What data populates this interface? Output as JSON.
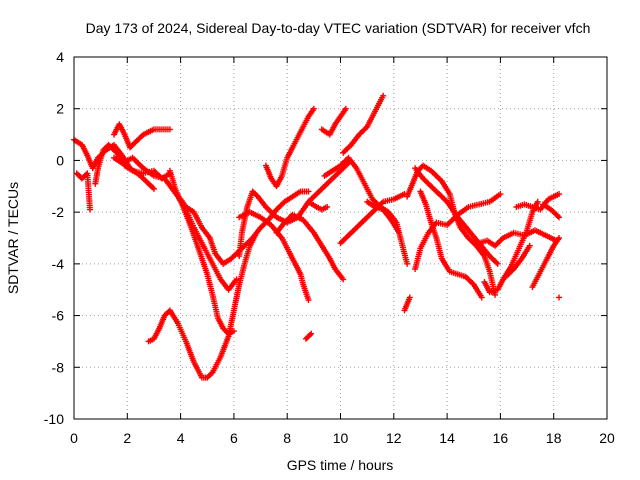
{
  "chart_data": {
    "type": "scatter",
    "title": "Day 173 of 2024, Sidereal Day-to-day VTEC variation (SDTVAR) for receiver vfch",
    "xlabel": "GPS time / hours",
    "ylabel": "SDTVAR / TECUs",
    "xlim": [
      0,
      20
    ],
    "ylim": [
      -10,
      4
    ],
    "xticks": [
      "0",
      "2",
      "4",
      "6",
      "8",
      "10",
      "12",
      "14",
      "16",
      "18",
      "20"
    ],
    "yticks": [
      "4",
      "2",
      "0",
      "-2",
      "-4",
      "-6",
      "-8",
      "-10"
    ],
    "grid": true,
    "marker": "+",
    "color": "#ff0000",
    "series": [
      {
        "name": "trace-1",
        "points": [
          [
            0.0,
            0.8
          ],
          [
            0.3,
            0.6
          ],
          [
            0.5,
            0.2
          ],
          [
            0.7,
            -0.3
          ],
          [
            0.9,
            0.1
          ],
          [
            1.2,
            0.4
          ],
          [
            1.5,
            0.6
          ],
          [
            1.8,
            0.2
          ],
          [
            2.1,
            -0.3
          ],
          [
            2.5,
            -0.6
          ],
          [
            3.0,
            -1.1
          ]
        ]
      },
      {
        "name": "trace-2",
        "points": [
          [
            0.1,
            -0.5
          ],
          [
            0.3,
            -0.7
          ],
          [
            0.5,
            -0.5
          ],
          [
            0.6,
            -1.9
          ]
        ]
      },
      {
        "name": "trace-3",
        "points": [
          [
            0.8,
            -0.9
          ],
          [
            0.9,
            -0.3
          ],
          [
            1.1,
            0.4
          ],
          [
            1.3,
            0.6
          ],
          [
            1.6,
            0.3
          ],
          [
            1.9,
            -0.2
          ],
          [
            2.2,
            -0.4
          ],
          [
            2.6,
            -0.5
          ],
          [
            3.0,
            -0.4
          ],
          [
            3.3,
            -0.7
          ],
          [
            3.6,
            -0.5
          ]
        ]
      },
      {
        "name": "trace-4",
        "points": [
          [
            1.5,
            1.0
          ],
          [
            1.7,
            1.4
          ],
          [
            1.9,
            1.0
          ],
          [
            2.1,
            0.5
          ],
          [
            2.3,
            0.7
          ],
          [
            2.6,
            1.0
          ],
          [
            3.0,
            1.2
          ],
          [
            3.6,
            1.2
          ]
        ]
      },
      {
        "name": "trace-5",
        "points": [
          [
            1.5,
            0.1
          ],
          [
            1.8,
            -0.1
          ],
          [
            2.2,
            0.1
          ],
          [
            2.6,
            -0.3
          ],
          [
            3.0,
            -0.6
          ],
          [
            3.4,
            -0.7
          ],
          [
            3.9,
            -1.4
          ],
          [
            4.2,
            -1.9
          ],
          [
            4.5,
            -2.6
          ],
          [
            4.9,
            -3.4
          ],
          [
            5.2,
            -4.0
          ],
          [
            5.5,
            -4.6
          ],
          [
            5.8,
            -5.0
          ],
          [
            6.1,
            -4.6
          ]
        ]
      },
      {
        "name": "trace-6",
        "points": [
          [
            3.6,
            -0.4
          ],
          [
            3.8,
            -1.1
          ],
          [
            4.1,
            -1.8
          ],
          [
            4.4,
            -2.6
          ],
          [
            4.7,
            -3.5
          ],
          [
            5.0,
            -4.4
          ],
          [
            5.2,
            -5.2
          ],
          [
            5.4,
            -6.1
          ],
          [
            5.6,
            -6.5
          ],
          [
            5.8,
            -6.7
          ],
          [
            6.0,
            -6.6
          ]
        ]
      },
      {
        "name": "trace-7",
        "points": [
          [
            4.0,
            -1.5
          ],
          [
            4.2,
            -1.8
          ],
          [
            4.5,
            -2.0
          ],
          [
            4.8,
            -2.6
          ],
          [
            5.1,
            -3.0
          ],
          [
            5.3,
            -3.6
          ],
          [
            5.6,
            -4.0
          ],
          [
            5.9,
            -3.8
          ],
          [
            6.1,
            -3.6
          ],
          [
            6.4,
            -3.3
          ],
          [
            6.7,
            -3.0
          ],
          [
            7.0,
            -2.6
          ],
          [
            7.3,
            -2.3
          ],
          [
            7.6,
            -1.9
          ],
          [
            7.9,
            -1.6
          ],
          [
            8.2,
            -1.4
          ],
          [
            8.5,
            -1.2
          ],
          [
            8.8,
            -1.2
          ]
        ]
      },
      {
        "name": "trace-8",
        "points": [
          [
            2.8,
            -7.0
          ],
          [
            3.0,
            -6.9
          ],
          [
            3.2,
            -6.5
          ],
          [
            3.4,
            -6.0
          ],
          [
            3.6,
            -5.8
          ],
          [
            3.9,
            -6.3
          ],
          [
            4.2,
            -7.0
          ],
          [
            4.5,
            -7.8
          ],
          [
            4.8,
            -8.4
          ],
          [
            5.0,
            -8.4
          ],
          [
            5.2,
            -8.2
          ],
          [
            5.5,
            -7.6
          ],
          [
            5.8,
            -6.8
          ],
          [
            6.0,
            -5.8
          ],
          [
            6.2,
            -4.8
          ],
          [
            6.4,
            -4.0
          ],
          [
            6.6,
            -3.3
          ],
          [
            6.8,
            -2.9
          ]
        ]
      },
      {
        "name": "trace-9",
        "points": [
          [
            6.2,
            -3.7
          ],
          [
            6.3,
            -2.8
          ],
          [
            6.5,
            -1.8
          ],
          [
            6.7,
            -1.2
          ],
          [
            6.9,
            -1.4
          ],
          [
            7.2,
            -1.8
          ],
          [
            7.6,
            -2.2
          ],
          [
            8.0,
            -2.4
          ],
          [
            8.4,
            -2.2
          ],
          [
            8.8,
            -1.6
          ],
          [
            9.2,
            -1.2
          ],
          [
            9.6,
            -0.8
          ],
          [
            10.0,
            -0.4
          ],
          [
            10.3,
            -0.1
          ]
        ]
      },
      {
        "name": "trace-10",
        "points": [
          [
            6.2,
            -2.2
          ],
          [
            6.6,
            -2.0
          ],
          [
            7.0,
            -2.2
          ],
          [
            7.4,
            -2.5
          ],
          [
            7.8,
            -3.0
          ],
          [
            8.1,
            -3.6
          ],
          [
            8.3,
            -4.0
          ],
          [
            8.5,
            -4.4
          ],
          [
            8.6,
            -4.8
          ],
          [
            8.8,
            -5.4
          ]
        ]
      },
      {
        "name": "trace-11",
        "points": [
          [
            7.2,
            -0.2
          ],
          [
            7.4,
            -0.7
          ],
          [
            7.6,
            -1.0
          ],
          [
            7.8,
            -0.6
          ],
          [
            8.0,
            0.1
          ],
          [
            8.2,
            0.5
          ],
          [
            8.5,
            1.1
          ],
          [
            8.8,
            1.7
          ],
          [
            9.0,
            2.0
          ]
        ]
      },
      {
        "name": "trace-12",
        "points": [
          [
            7.6,
            -2.8
          ],
          [
            7.9,
            -2.4
          ],
          [
            8.2,
            -2.1
          ],
          [
            8.6,
            -2.3
          ],
          [
            9.0,
            -2.8
          ],
          [
            9.3,
            -3.3
          ],
          [
            9.6,
            -3.8
          ],
          [
            9.8,
            -4.2
          ],
          [
            10.1,
            -4.6
          ]
        ]
      },
      {
        "name": "trace-13",
        "points": [
          [
            8.7,
            -6.9
          ],
          [
            8.9,
            -6.7
          ]
        ]
      },
      {
        "name": "trace-14",
        "points": [
          [
            8.8,
            -1.6
          ],
          [
            9.1,
            -1.8
          ],
          [
            9.3,
            -1.9
          ],
          [
            9.5,
            -1.8
          ]
        ]
      },
      {
        "name": "trace-15",
        "points": [
          [
            9.3,
            1.2
          ],
          [
            9.6,
            1.0
          ],
          [
            9.8,
            1.4
          ],
          [
            10.0,
            1.7
          ],
          [
            10.2,
            2.0
          ]
        ]
      },
      {
        "name": "trace-16",
        "points": [
          [
            9.4,
            -0.6
          ],
          [
            9.7,
            -0.4
          ],
          [
            10.0,
            -0.2
          ],
          [
            10.3,
            0.1
          ],
          [
            10.6,
            -0.3
          ],
          [
            10.9,
            -0.9
          ],
          [
            11.2,
            -1.5
          ],
          [
            11.5,
            -1.8
          ],
          [
            11.8,
            -2.0
          ],
          [
            12.1,
            -2.4
          ],
          [
            12.3,
            -3.2
          ],
          [
            12.5,
            -4.0
          ]
        ]
      },
      {
        "name": "trace-17",
        "points": [
          [
            10.1,
            0.3
          ],
          [
            10.4,
            0.6
          ],
          [
            10.7,
            1.0
          ],
          [
            11.0,
            1.3
          ],
          [
            11.3,
            1.9
          ],
          [
            11.6,
            2.5
          ]
        ]
      },
      {
        "name": "trace-18",
        "points": [
          [
            10.0,
            -3.2
          ],
          [
            10.4,
            -2.8
          ],
          [
            10.8,
            -2.4
          ],
          [
            11.2,
            -2.0
          ],
          [
            11.6,
            -1.6
          ],
          [
            12.0,
            -1.5
          ],
          [
            12.4,
            -1.3
          ]
        ]
      },
      {
        "name": "trace-19",
        "points": [
          [
            11.0,
            -1.6
          ],
          [
            11.3,
            -1.8
          ],
          [
            11.6,
            -1.9
          ],
          [
            11.9,
            -2.3
          ],
          [
            12.2,
            -2.8
          ]
        ]
      },
      {
        "name": "trace-20",
        "points": [
          [
            12.4,
            -5.8
          ],
          [
            12.6,
            -5.3
          ]
        ]
      },
      {
        "name": "trace-21",
        "points": [
          [
            12.8,
            -4.2
          ],
          [
            13.0,
            -3.4
          ],
          [
            13.3,
            -2.8
          ],
          [
            13.6,
            -2.4
          ],
          [
            14.0,
            -2.5
          ],
          [
            14.4,
            -2.1
          ],
          [
            14.8,
            -1.8
          ],
          [
            15.2,
            -1.7
          ],
          [
            15.6,
            -1.6
          ],
          [
            16.0,
            -1.3
          ]
        ]
      },
      {
        "name": "trace-22",
        "points": [
          [
            12.5,
            -1.4
          ],
          [
            12.7,
            -0.9
          ],
          [
            12.9,
            -0.4
          ],
          [
            13.1,
            -0.2
          ],
          [
            13.4,
            -0.4
          ],
          [
            13.8,
            -0.8
          ],
          [
            14.1,
            -1.3
          ],
          [
            14.3,
            -2.1
          ],
          [
            14.5,
            -2.6
          ],
          [
            14.8,
            -3.0
          ],
          [
            15.1,
            -3.3
          ],
          [
            15.4,
            -3.7
          ],
          [
            15.6,
            -4.3
          ],
          [
            15.8,
            -5.2
          ]
        ]
      },
      {
        "name": "trace-23",
        "points": [
          [
            12.8,
            -0.3
          ],
          [
            13.1,
            -0.7
          ],
          [
            13.4,
            -1.0
          ],
          [
            13.7,
            -1.3
          ],
          [
            14.0,
            -1.6
          ],
          [
            14.4,
            -2.2
          ],
          [
            14.8,
            -2.7
          ],
          [
            15.2,
            -3.2
          ],
          [
            15.6,
            -3.7
          ],
          [
            15.9,
            -4.0
          ]
        ]
      },
      {
        "name": "trace-24",
        "points": [
          [
            13.0,
            -1.2
          ],
          [
            13.2,
            -1.7
          ],
          [
            13.4,
            -2.4
          ],
          [
            13.6,
            -3.0
          ],
          [
            13.8,
            -3.8
          ],
          [
            14.1,
            -4.3
          ],
          [
            14.4,
            -4.4
          ],
          [
            14.7,
            -4.5
          ],
          [
            15.0,
            -4.8
          ],
          [
            15.3,
            -5.3
          ]
        ]
      },
      {
        "name": "trace-25",
        "points": [
          [
            15.4,
            -4.7
          ],
          [
            15.6,
            -5.1
          ],
          [
            15.9,
            -5.0
          ],
          [
            16.1,
            -4.6
          ],
          [
            16.4,
            -4.1
          ],
          [
            16.7,
            -3.4
          ],
          [
            17.0,
            -2.7
          ],
          [
            17.2,
            -2.0
          ],
          [
            17.4,
            -1.6
          ]
        ]
      },
      {
        "name": "trace-26",
        "points": [
          [
            15.2,
            -3.2
          ],
          [
            15.5,
            -3.1
          ],
          [
            15.8,
            -3.3
          ],
          [
            16.1,
            -3.0
          ],
          [
            16.5,
            -2.8
          ],
          [
            16.9,
            -2.9
          ],
          [
            17.3,
            -2.7
          ],
          [
            17.7,
            -2.9
          ],
          [
            18.1,
            -3.1
          ]
        ]
      },
      {
        "name": "trace-27",
        "points": [
          [
            16.2,
            -4.5
          ],
          [
            16.5,
            -4.2
          ],
          [
            16.8,
            -3.8
          ],
          [
            17.1,
            -3.3
          ]
        ]
      },
      {
        "name": "trace-28",
        "points": [
          [
            16.6,
            -1.8
          ],
          [
            16.9,
            -1.7
          ],
          [
            17.2,
            -1.8
          ],
          [
            17.5,
            -1.9
          ],
          [
            17.8,
            -1.5
          ],
          [
            18.2,
            -1.3
          ]
        ]
      },
      {
        "name": "trace-29",
        "points": [
          [
            17.2,
            -4.9
          ],
          [
            17.5,
            -4.3
          ],
          [
            17.8,
            -3.7
          ],
          [
            18.0,
            -3.3
          ],
          [
            18.2,
            -3.0
          ]
        ]
      },
      {
        "name": "trace-30",
        "points": [
          [
            17.6,
            -1.7
          ],
          [
            17.9,
            -1.9
          ],
          [
            18.2,
            -2.2
          ]
        ]
      },
      {
        "name": "trace-31",
        "points": [
          [
            18.2,
            -5.3
          ]
        ]
      }
    ]
  }
}
